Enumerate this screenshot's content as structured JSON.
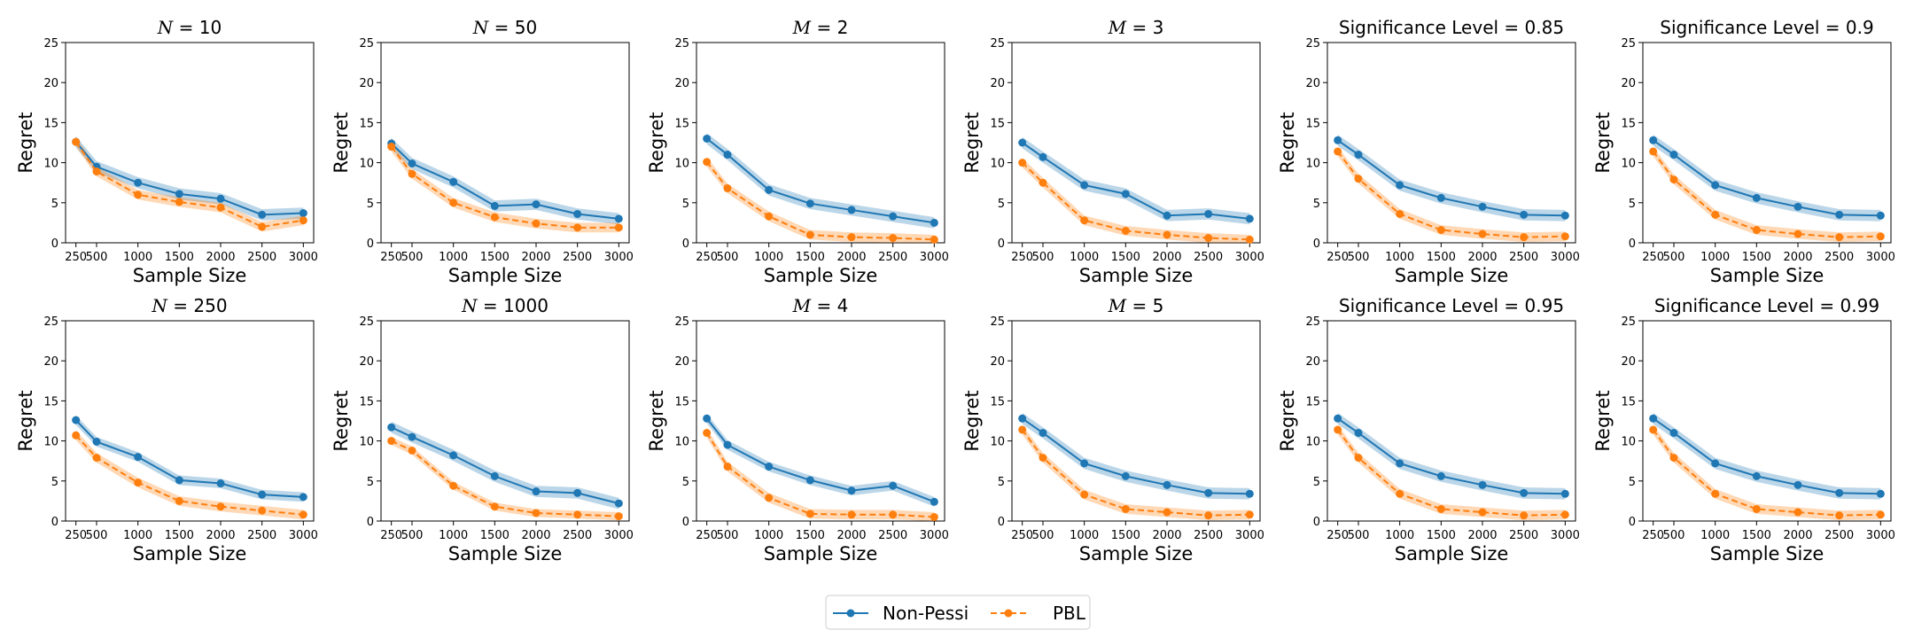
{
  "chart_data": {
    "type": "line",
    "x": [
      250,
      500,
      1000,
      1500,
      2000,
      2500,
      3000
    ],
    "xticklabels": [
      "250",
      "500",
      "1000",
      "1500",
      "2000",
      "2500",
      "3000"
    ],
    "ylim": [
      0,
      25
    ],
    "yticks": [
      0,
      5,
      10,
      15,
      20,
      25
    ],
    "yticklabels": [
      "0",
      "5",
      "10",
      "15",
      "20",
      "25"
    ],
    "xlabel": "Sample Size",
    "ylabel": "Regret",
    "legend": {
      "placement": "bottom-center",
      "entries": [
        {
          "name": "Non-Pessi",
          "color": "#1f77b4",
          "style": "solid"
        },
        {
          "name": "PBL",
          "color": "#ff7f0e",
          "style": "dashed"
        }
      ]
    },
    "colors": {
      "non_pessi": "#1f77b4",
      "pbl": "#ff7f0e"
    },
    "panels": [
      {
        "title_var": "N",
        "title_value": "10",
        "non_pessi": [
          12.6,
          9.5,
          7.5,
          6.1,
          5.5,
          3.5,
          3.7
        ],
        "pbl": [
          12.6,
          8.9,
          6.0,
          5.1,
          4.4,
          2.0,
          2.8
        ],
        "band_np": 0.7,
        "band_pbl": 0.6
      },
      {
        "title_var": "N",
        "title_value": "50",
        "non_pessi": [
          12.4,
          9.9,
          7.6,
          4.6,
          4.8,
          3.6,
          3.0
        ],
        "pbl": [
          12.0,
          8.6,
          5.0,
          3.2,
          2.4,
          1.9,
          1.9
        ],
        "band_np": 0.7,
        "band_pbl": 0.6
      },
      {
        "title_var": "M",
        "title_value": "2",
        "non_pessi": [
          13.0,
          11.0,
          6.6,
          4.9,
          4.1,
          3.3,
          2.5
        ],
        "pbl": [
          10.1,
          6.8,
          3.3,
          1.0,
          0.7,
          0.6,
          0.4
        ],
        "band_np": 0.7,
        "band_pbl": 0.6
      },
      {
        "title_var": "M",
        "title_value": "3",
        "non_pessi": [
          12.5,
          10.7,
          7.2,
          6.1,
          3.4,
          3.6,
          3.0
        ],
        "pbl": [
          10.0,
          7.5,
          2.8,
          1.5,
          1.0,
          0.6,
          0.4
        ],
        "band_np": 0.7,
        "band_pbl": 0.6
      },
      {
        "title_var": "",
        "title_value": "Significance Level = 0.85",
        "non_pessi": [
          12.8,
          11.0,
          7.2,
          5.6,
          4.5,
          3.5,
          3.4
        ],
        "pbl": [
          11.4,
          8.0,
          3.6,
          1.6,
          1.1,
          0.7,
          0.8
        ],
        "band_np": 0.7,
        "band_pbl": 0.6
      },
      {
        "title_var": "",
        "title_value": "Significance Level = 0.9",
        "non_pessi": [
          12.8,
          11.0,
          7.2,
          5.6,
          4.5,
          3.5,
          3.4
        ],
        "pbl": [
          11.4,
          7.9,
          3.5,
          1.6,
          1.1,
          0.7,
          0.8
        ],
        "band_np": 0.7,
        "band_pbl": 0.6
      },
      {
        "title_var": "N",
        "title_value": "250",
        "non_pessi": [
          12.6,
          9.9,
          8.0,
          5.1,
          4.7,
          3.3,
          3.0
        ],
        "pbl": [
          10.7,
          7.9,
          4.8,
          2.5,
          1.8,
          1.3,
          0.8
        ],
        "band_np": 0.6,
        "band_pbl": 0.6
      },
      {
        "title_var": "N",
        "title_value": "1000",
        "non_pessi": [
          11.7,
          10.5,
          8.2,
          5.6,
          3.7,
          3.5,
          2.2
        ],
        "pbl": [
          10.0,
          8.8,
          4.4,
          1.8,
          1.0,
          0.8,
          0.6
        ],
        "band_np": 0.7,
        "band_pbl": 0.5
      },
      {
        "title_var": "M",
        "title_value": "4",
        "non_pessi": [
          12.8,
          9.5,
          6.8,
          5.1,
          3.8,
          4.4,
          2.4
        ],
        "pbl": [
          11.0,
          6.8,
          2.9,
          0.9,
          0.8,
          0.8,
          0.5
        ],
        "band_np": 0.6,
        "band_pbl": 0.6
      },
      {
        "title_var": "M",
        "title_value": "5",
        "non_pessi": [
          12.8,
          11.0,
          7.2,
          5.6,
          4.5,
          3.5,
          3.4
        ],
        "pbl": [
          11.4,
          7.9,
          3.3,
          1.5,
          1.1,
          0.7,
          0.8
        ],
        "band_np": 0.7,
        "band_pbl": 0.6
      },
      {
        "title_var": "",
        "title_value": "Significance Level = 0.95",
        "non_pessi": [
          12.8,
          11.0,
          7.2,
          5.6,
          4.5,
          3.5,
          3.4
        ],
        "pbl": [
          11.4,
          7.9,
          3.4,
          1.5,
          1.1,
          0.7,
          0.8
        ],
        "band_np": 0.7,
        "band_pbl": 0.6
      },
      {
        "title_var": "",
        "title_value": "Significance Level = 0.99",
        "non_pessi": [
          12.8,
          11.0,
          7.2,
          5.6,
          4.5,
          3.5,
          3.4
        ],
        "pbl": [
          11.4,
          7.9,
          3.4,
          1.5,
          1.1,
          0.7,
          0.8
        ],
        "band_np": 0.7,
        "band_pbl": 0.6
      }
    ]
  }
}
